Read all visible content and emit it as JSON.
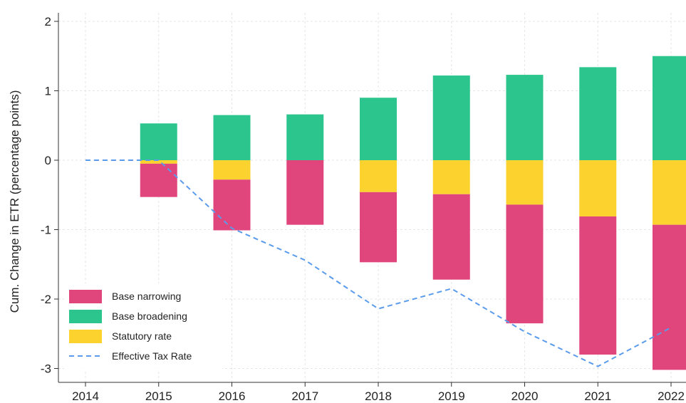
{
  "chart_data": {
    "type": "bar",
    "stacked": true,
    "categories": [
      "2014",
      "2015",
      "2016",
      "2017",
      "2018",
      "2019",
      "2020",
      "2021",
      "2022"
    ],
    "ylabel": "Cum. Change in ETR (percentage points)",
    "xlabel": "",
    "ylim": [
      -3.1,
      2.1
    ],
    "yticks": [
      2,
      1,
      0,
      -1,
      -2,
      -3
    ],
    "grid": true,
    "legend_position": "bottom-left",
    "series": [
      {
        "name": "Base narrowing",
        "color": "#E0457B",
        "type": "bar",
        "bottoms": [
          null,
          -0.05,
          -0.28,
          0.0,
          -0.46,
          -0.49,
          -0.64,
          -0.81,
          -0.93
        ],
        "tops": [
          null,
          -0.53,
          -1.01,
          -0.93,
          -1.47,
          -1.72,
          -2.35,
          -2.8,
          -3.02
        ]
      },
      {
        "name": "Base broadening",
        "color": "#2DC58E",
        "type": "bar",
        "values": [
          null,
          0.53,
          0.65,
          0.66,
          0.9,
          1.22,
          1.23,
          1.34,
          1.5
        ]
      },
      {
        "name": "Statutory rate",
        "color": "#FCD22F",
        "type": "bar",
        "values": [
          null,
          -0.05,
          -0.28,
          0.0,
          -0.46,
          -0.49,
          -0.64,
          -0.81,
          -0.93
        ]
      },
      {
        "name": "Effective Tax Rate",
        "color": "#5A9BEB",
        "type": "line",
        "style": "dashed",
        "values": [
          0.0,
          0.0,
          -0.98,
          -1.44,
          -2.14,
          -1.85,
          -2.47,
          -2.97,
          -2.41
        ]
      }
    ]
  }
}
